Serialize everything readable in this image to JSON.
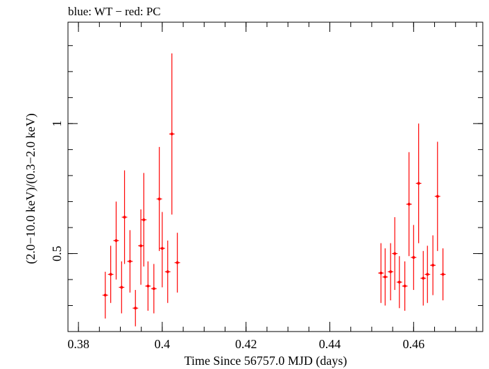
{
  "chart_data": {
    "type": "scatter",
    "title": "blue: WT − red: PC",
    "xlabel": "Time Since 56757.0 MJD (days)",
    "ylabel": "(2.0−10.0 keV)/(0.3−2.0 keV)",
    "xlim": [
      0.3775,
      0.4765
    ],
    "ylim": [
      0.2,
      1.39
    ],
    "x_ticks": [
      {
        "value": 0.38,
        "label": "0.38"
      },
      {
        "value": 0.4,
        "label": "0.4"
      },
      {
        "value": 0.42,
        "label": "0.42"
      },
      {
        "value": 0.44,
        "label": "0.44"
      },
      {
        "value": 0.46,
        "label": "0.46"
      }
    ],
    "y_ticks": [
      {
        "value": 0.5,
        "label": "0.5"
      },
      {
        "value": 1.0,
        "label": "1"
      }
    ],
    "y_minor_step": 0.1,
    "x_minor_step": 0.005,
    "grid": false,
    "legend": "none",
    "series": [
      {
        "color": "#ff0000",
        "x_err": 0.00065,
        "points": [
          {
            "x": 0.3864,
            "y": 0.34,
            "ylo": 0.25,
            "yhi": 0.43
          },
          {
            "x": 0.3877,
            "y": 0.42,
            "ylo": 0.31,
            "yhi": 0.53
          },
          {
            "x": 0.389,
            "y": 0.55,
            "ylo": 0.4,
            "yhi": 0.7
          },
          {
            "x": 0.3903,
            "y": 0.37,
            "ylo": 0.27,
            "yhi": 0.47
          },
          {
            "x": 0.391,
            "y": 0.64,
            "ylo": 0.46,
            "yhi": 0.82
          },
          {
            "x": 0.3923,
            "y": 0.47,
            "ylo": 0.35,
            "yhi": 0.59
          },
          {
            "x": 0.3936,
            "y": 0.29,
            "ylo": 0.22,
            "yhi": 0.36
          },
          {
            "x": 0.3949,
            "y": 0.53,
            "ylo": 0.38,
            "yhi": 0.67
          },
          {
            "x": 0.3956,
            "y": 0.63,
            "ylo": 0.45,
            "yhi": 0.81
          },
          {
            "x": 0.3966,
            "y": 0.375,
            "ylo": 0.28,
            "yhi": 0.47
          },
          {
            "x": 0.398,
            "y": 0.365,
            "ylo": 0.27,
            "yhi": 0.46
          },
          {
            "x": 0.3993,
            "y": 0.71,
            "ylo": 0.51,
            "yhi": 0.91
          },
          {
            "x": 0.4,
            "y": 0.52,
            "ylo": 0.37,
            "yhi": 0.66
          },
          {
            "x": 0.4013,
            "y": 0.43,
            "ylo": 0.31,
            "yhi": 0.55
          },
          {
            "x": 0.4023,
            "y": 0.96,
            "ylo": 0.65,
            "yhi": 1.27
          },
          {
            "x": 0.4036,
            "y": 0.465,
            "ylo": 0.35,
            "yhi": 0.58
          },
          {
            "x": 0.4522,
            "y": 0.425,
            "ylo": 0.31,
            "yhi": 0.54
          },
          {
            "x": 0.4532,
            "y": 0.41,
            "ylo": 0.3,
            "yhi": 0.52
          },
          {
            "x": 0.4545,
            "y": 0.43,
            "ylo": 0.32,
            "yhi": 0.54
          },
          {
            "x": 0.4555,
            "y": 0.5,
            "ylo": 0.36,
            "yhi": 0.64
          },
          {
            "x": 0.4566,
            "y": 0.39,
            "ylo": 0.29,
            "yhi": 0.49
          },
          {
            "x": 0.4579,
            "y": 0.375,
            "ylo": 0.28,
            "yhi": 0.47
          },
          {
            "x": 0.4589,
            "y": 0.69,
            "ylo": 0.49,
            "yhi": 0.89
          },
          {
            "x": 0.46,
            "y": 0.485,
            "ylo": 0.36,
            "yhi": 0.61
          },
          {
            "x": 0.4612,
            "y": 0.77,
            "ylo": 0.54,
            "yhi": 1.0
          },
          {
            "x": 0.4623,
            "y": 0.405,
            "ylo": 0.3,
            "yhi": 0.51
          },
          {
            "x": 0.4633,
            "y": 0.42,
            "ylo": 0.31,
            "yhi": 0.53
          },
          {
            "x": 0.4646,
            "y": 0.455,
            "ylo": 0.34,
            "yhi": 0.57
          },
          {
            "x": 0.4657,
            "y": 0.72,
            "ylo": 0.51,
            "yhi": 0.93
          },
          {
            "x": 0.467,
            "y": 0.42,
            "ylo": 0.32,
            "yhi": 0.52
          }
        ]
      }
    ]
  }
}
